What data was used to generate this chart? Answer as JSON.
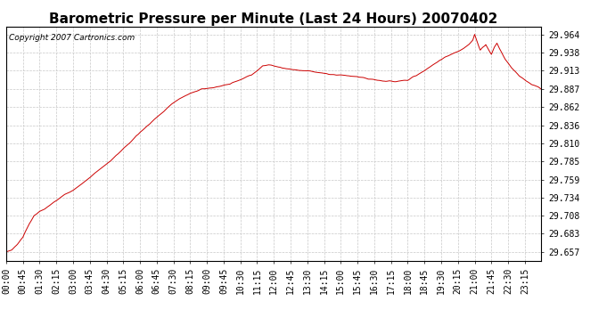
{
  "title": "Barometric Pressure per Minute (Last 24 Hours) 20070402",
  "copyright": "Copyright 2007 Cartronics.com",
  "line_color": "#cc0000",
  "background_color": "#ffffff",
  "grid_color": "#c8c8c8",
  "yticks": [
    29.657,
    29.683,
    29.708,
    29.734,
    29.759,
    29.785,
    29.81,
    29.836,
    29.862,
    29.887,
    29.913,
    29.938,
    29.964
  ],
  "ylim": [
    29.645,
    29.975
  ],
  "xtick_labels": [
    "00:00",
    "00:45",
    "01:30",
    "02:15",
    "03:00",
    "03:45",
    "04:30",
    "05:15",
    "06:00",
    "06:45",
    "07:30",
    "08:15",
    "09:00",
    "09:45",
    "10:30",
    "11:15",
    "12:00",
    "12:45",
    "13:30",
    "14:15",
    "15:00",
    "15:45",
    "16:30",
    "17:15",
    "18:00",
    "18:45",
    "19:30",
    "20:15",
    "21:00",
    "21:45",
    "22:30",
    "23:15"
  ],
  "title_fontsize": 11,
  "label_fontsize": 7,
  "copyright_fontsize": 6.5,
  "waypoints": [
    [
      0,
      29.657
    ],
    [
      15,
      29.66
    ],
    [
      30,
      29.668
    ],
    [
      45,
      29.678
    ],
    [
      60,
      29.695
    ],
    [
      75,
      29.708
    ],
    [
      90,
      29.714
    ],
    [
      105,
      29.718
    ],
    [
      120,
      29.724
    ],
    [
      135,
      29.73
    ],
    [
      150,
      29.736
    ],
    [
      165,
      29.74
    ],
    [
      180,
      29.744
    ],
    [
      195,
      29.75
    ],
    [
      210,
      29.756
    ],
    [
      225,
      29.762
    ],
    [
      240,
      29.769
    ],
    [
      255,
      29.775
    ],
    [
      270,
      29.781
    ],
    [
      285,
      29.788
    ],
    [
      300,
      29.795
    ],
    [
      315,
      29.803
    ],
    [
      330,
      29.81
    ],
    [
      345,
      29.818
    ],
    [
      360,
      29.826
    ],
    [
      375,
      29.833
    ],
    [
      390,
      29.84
    ],
    [
      405,
      29.847
    ],
    [
      420,
      29.854
    ],
    [
      435,
      29.861
    ],
    [
      450,
      29.868
    ],
    [
      465,
      29.873
    ],
    [
      480,
      29.877
    ],
    [
      495,
      29.881
    ],
    [
      510,
      29.884
    ],
    [
      525,
      29.887
    ],
    [
      540,
      29.888
    ],
    [
      555,
      29.889
    ],
    [
      570,
      29.89
    ],
    [
      585,
      29.892
    ],
    [
      600,
      29.894
    ],
    [
      615,
      29.897
    ],
    [
      630,
      29.9
    ],
    [
      645,
      29.904
    ],
    [
      660,
      29.907
    ],
    [
      675,
      29.913
    ],
    [
      690,
      29.92
    ],
    [
      705,
      29.921
    ],
    [
      720,
      29.92
    ],
    [
      735,
      29.918
    ],
    [
      750,
      29.916
    ],
    [
      765,
      29.915
    ],
    [
      780,
      29.914
    ],
    [
      795,
      29.913
    ],
    [
      810,
      29.913
    ],
    [
      825,
      29.912
    ],
    [
      840,
      29.91
    ],
    [
      855,
      29.909
    ],
    [
      870,
      29.908
    ],
    [
      885,
      29.907
    ],
    [
      900,
      29.907
    ],
    [
      915,
      29.906
    ],
    [
      930,
      29.905
    ],
    [
      945,
      29.904
    ],
    [
      960,
      29.903
    ],
    [
      975,
      29.901
    ],
    [
      990,
      29.9
    ],
    [
      1005,
      29.899
    ],
    [
      1020,
      29.898
    ],
    [
      1035,
      29.898
    ],
    [
      1050,
      29.898
    ],
    [
      1065,
      29.899
    ],
    [
      1080,
      29.9
    ],
    [
      1095,
      29.904
    ],
    [
      1110,
      29.908
    ],
    [
      1125,
      29.913
    ],
    [
      1140,
      29.918
    ],
    [
      1155,
      29.924
    ],
    [
      1170,
      29.929
    ],
    [
      1185,
      29.933
    ],
    [
      1200,
      29.937
    ],
    [
      1215,
      29.94
    ],
    [
      1230,
      29.944
    ],
    [
      1245,
      29.95
    ],
    [
      1255,
      29.956
    ],
    [
      1260,
      29.964
    ],
    [
      1268,
      29.952
    ],
    [
      1275,
      29.942
    ],
    [
      1282,
      29.946
    ],
    [
      1290,
      29.95
    ],
    [
      1298,
      29.942
    ],
    [
      1305,
      29.936
    ],
    [
      1313,
      29.946
    ],
    [
      1320,
      29.952
    ],
    [
      1328,
      29.943
    ],
    [
      1335,
      29.936
    ],
    [
      1343,
      29.928
    ],
    [
      1350,
      29.924
    ],
    [
      1358,
      29.918
    ],
    [
      1365,
      29.914
    ],
    [
      1373,
      29.91
    ],
    [
      1380,
      29.906
    ],
    [
      1390,
      29.902
    ],
    [
      1400,
      29.898
    ],
    [
      1410,
      29.894
    ],
    [
      1420,
      29.892
    ],
    [
      1430,
      29.89
    ],
    [
      1439,
      29.887
    ]
  ]
}
